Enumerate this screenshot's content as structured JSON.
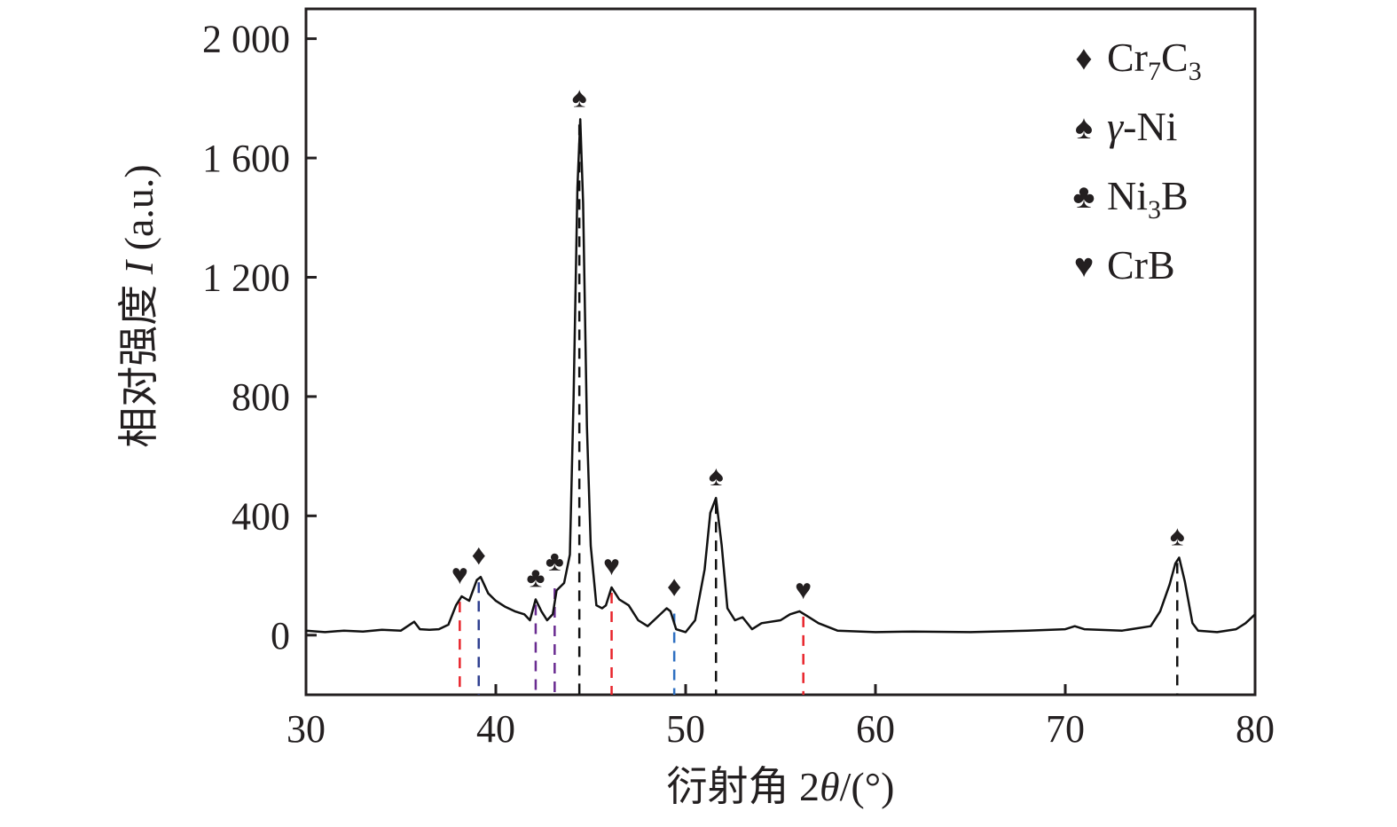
{
  "chart_data": {
    "type": "line",
    "xlabel": "衍射角 2θ/(°)",
    "xlabel_parts": {
      "text": "衍射角 2",
      "theta": "θ",
      "unit": "/(°)"
    },
    "ylabel": "相对强度 I (a.u.)",
    "ylabel_parts": {
      "text": "相对强度 ",
      "italic": "I",
      "unit": " (a.u.)"
    },
    "xlim": [
      30,
      80
    ],
    "ylim": [
      -200,
      2100
    ],
    "x_ticks": [
      30,
      40,
      50,
      60,
      70,
      80
    ],
    "x_tick_labels": [
      "30",
      "40",
      "50",
      "60",
      "70",
      "80"
    ],
    "y_ticks": [
      0,
      400,
      800,
      1200,
      1600,
      2000
    ],
    "y_tick_labels": [
      "0",
      "400",
      "800",
      "1 200",
      "1 600",
      "2 000"
    ],
    "grid": false,
    "legend_position": "top-right",
    "line_color": "#111111",
    "series": [
      {
        "values": [
          [
            30,
            15
          ],
          [
            31,
            10
          ],
          [
            32,
            15
          ],
          [
            33,
            12
          ],
          [
            34,
            18
          ],
          [
            35,
            15
          ],
          [
            35.7,
            45
          ],
          [
            36,
            20
          ],
          [
            36.5,
            18
          ],
          [
            37,
            20
          ],
          [
            37.5,
            35
          ],
          [
            37.9,
            100
          ],
          [
            38.2,
            130
          ],
          [
            38.6,
            115
          ],
          [
            39,
            185
          ],
          [
            39.2,
            195
          ],
          [
            39.6,
            140
          ],
          [
            40,
            115
          ],
          [
            40.5,
            95
          ],
          [
            41,
            80
          ],
          [
            41.5,
            70
          ],
          [
            41.8,
            50
          ],
          [
            42.1,
            120
          ],
          [
            42.4,
            80
          ],
          [
            42.7,
            50
          ],
          [
            43,
            70
          ],
          [
            43.2,
            150
          ],
          [
            43.6,
            175
          ],
          [
            43.9,
            270
          ],
          [
            44.1,
            800
          ],
          [
            44.3,
            1500
          ],
          [
            44.45,
            1730
          ],
          [
            44.6,
            1450
          ],
          [
            44.8,
            700
          ],
          [
            45.0,
            300
          ],
          [
            45.3,
            100
          ],
          [
            45.6,
            90
          ],
          [
            45.8,
            100
          ],
          [
            46.1,
            160
          ],
          [
            46.5,
            120
          ],
          [
            47,
            100
          ],
          [
            47.5,
            50
          ],
          [
            48,
            30
          ],
          [
            48.5,
            60
          ],
          [
            49,
            90
          ],
          [
            49.2,
            80
          ],
          [
            49.5,
            20
          ],
          [
            50,
            10
          ],
          [
            50.5,
            50
          ],
          [
            51,
            220
          ],
          [
            51.3,
            410
          ],
          [
            51.6,
            460
          ],
          [
            51.9,
            300
          ],
          [
            52.2,
            90
          ],
          [
            52.6,
            50
          ],
          [
            53,
            60
          ],
          [
            53.5,
            20
          ],
          [
            54,
            40
          ],
          [
            55,
            50
          ],
          [
            55.5,
            70
          ],
          [
            56,
            80
          ],
          [
            56.5,
            60
          ],
          [
            57,
            40
          ],
          [
            58,
            15
          ],
          [
            60,
            10
          ],
          [
            62,
            12
          ],
          [
            65,
            10
          ],
          [
            68,
            15
          ],
          [
            70,
            20
          ],
          [
            70.5,
            30
          ],
          [
            71,
            20
          ],
          [
            73,
            15
          ],
          [
            74.5,
            30
          ],
          [
            75,
            80
          ],
          [
            75.5,
            170
          ],
          [
            75.8,
            240
          ],
          [
            76,
            260
          ],
          [
            76.3,
            180
          ],
          [
            76.7,
            40
          ],
          [
            77,
            15
          ],
          [
            78,
            10
          ],
          [
            79,
            20
          ],
          [
            79.5,
            40
          ],
          [
            80,
            70
          ]
        ]
      }
    ],
    "peak_markers": [
      {
        "phase": "CrB",
        "symbol": "♥",
        "x": 38.1,
        "y": 130,
        "color": "#e8242b"
      },
      {
        "phase": "Cr7C3",
        "symbol": "♦",
        "x": 39.1,
        "y": 195,
        "color": "#2e3f8f"
      },
      {
        "phase": "Ni3B",
        "symbol": "♣",
        "x": 42.1,
        "y": 120,
        "color": "#6a2c91"
      },
      {
        "phase": "Ni3B",
        "symbol": "♣",
        "x": 43.1,
        "y": 175,
        "color": "#6a2c91"
      },
      {
        "phase": "γ-Ni",
        "symbol": "♠",
        "x": 44.4,
        "y": 1730,
        "color": "#111111"
      },
      {
        "phase": "CrB",
        "symbol": "♥",
        "x": 46.1,
        "y": 160,
        "color": "#e8242b"
      },
      {
        "phase": "Cr7C3",
        "symbol": "♦",
        "x": 49.4,
        "y": 90,
        "color": "#2e6fc1"
      },
      {
        "phase": "γ-Ni",
        "symbol": "♠",
        "x": 51.6,
        "y": 460,
        "color": "#111111"
      },
      {
        "phase": "CrB",
        "symbol": "♥",
        "x": 56.2,
        "y": 80,
        "color": "#e8242b"
      },
      {
        "phase": "γ-Ni",
        "symbol": "♠",
        "x": 75.9,
        "y": 260,
        "color": "#111111"
      }
    ],
    "legend": [
      {
        "symbol": "♦",
        "label_main": "Cr",
        "sub1": "7",
        "mid": "C",
        "sub2": "3"
      },
      {
        "symbol": "♠",
        "label_italic": "γ",
        "label_rest": "-Ni"
      },
      {
        "symbol": "♣",
        "label_main": "Ni",
        "sub1": "3",
        "mid": "B",
        "sub2": ""
      },
      {
        "symbol": "♥",
        "label_main": "CrB"
      }
    ]
  }
}
